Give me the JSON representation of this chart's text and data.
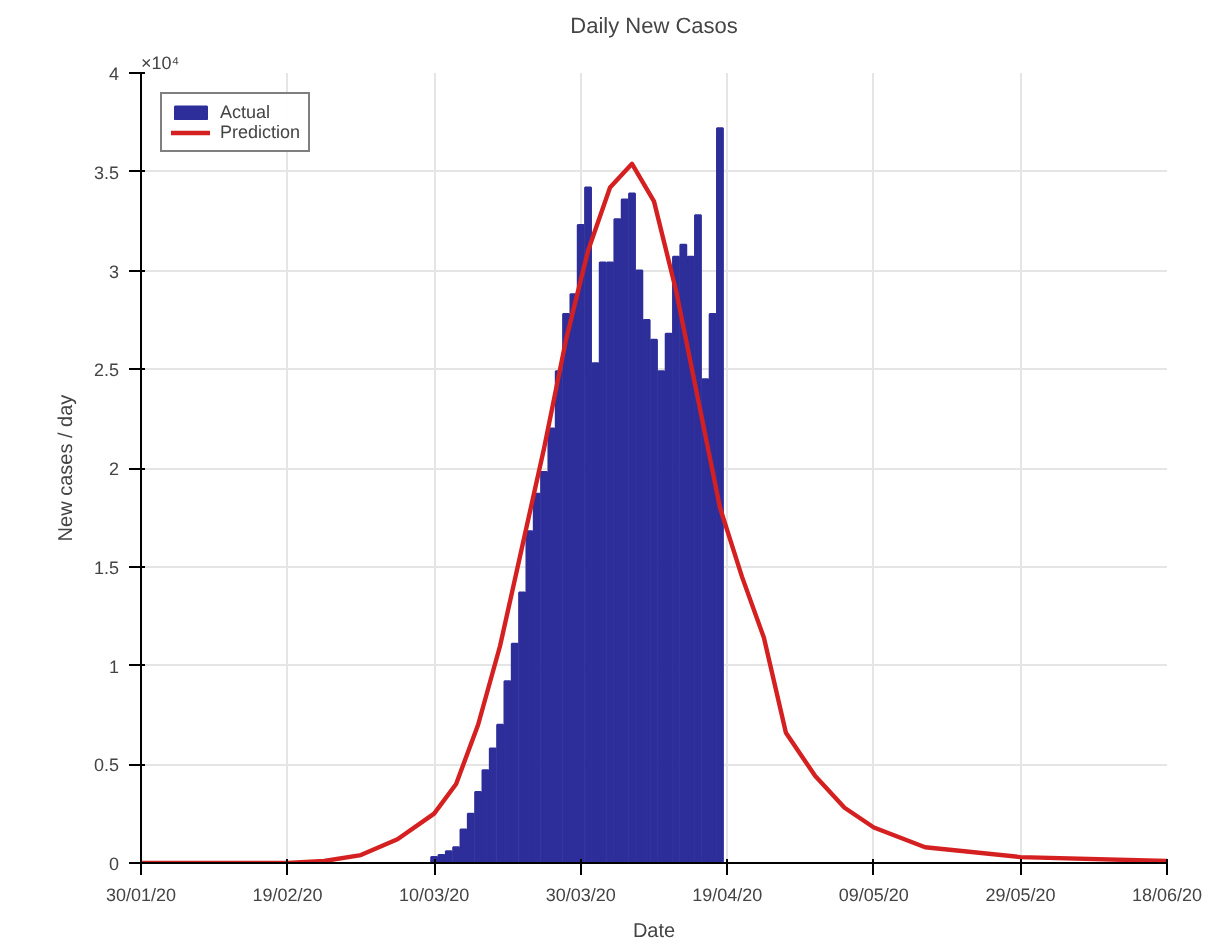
{
  "chart_data": {
    "type": "bar",
    "title": "Daily New Casos",
    "xlabel": "Date",
    "ylabel": "New cases / day",
    "annotations": [
      "×10⁴"
    ],
    "xlim": [
      "2020-01-30",
      "2020-06-18"
    ],
    "xticks": [
      {
        "value": "2020-01-30",
        "label": "30/01/20"
      },
      {
        "value": "2020-02-19",
        "label": "19/02/20"
      },
      {
        "value": "2020-03-10",
        "label": "10/03/20"
      },
      {
        "value": "2020-03-30",
        "label": "30/03/20"
      },
      {
        "value": "2020-04-19",
        "label": "19/04/20"
      },
      {
        "value": "2020-05-09",
        "label": "09/05/20"
      },
      {
        "value": "2020-05-29",
        "label": "29/05/20"
      },
      {
        "value": "2020-06-18",
        "label": "18/06/20"
      }
    ],
    "ylim": [
      0,
      4
    ],
    "yticks": [
      0,
      0.5,
      1,
      1.5,
      2,
      2.5,
      3,
      3.5,
      4
    ],
    "grid": true,
    "legend": "top left",
    "series": [
      {
        "name": "Actual",
        "color": "#2e2e9a",
        "x": [
          "2020-03-10",
          "2020-03-11",
          "2020-03-12",
          "2020-03-13",
          "2020-03-14",
          "2020-03-15",
          "2020-03-16",
          "2020-03-17",
          "2020-03-18",
          "2020-03-19",
          "2020-03-20",
          "2020-03-21",
          "2020-03-22",
          "2020-03-23",
          "2020-03-24",
          "2020-03-25",
          "2020-03-26",
          "2020-03-27",
          "2020-03-28",
          "2020-03-29",
          "2020-03-30",
          "2020-03-31",
          "2020-04-01",
          "2020-04-02",
          "2020-04-03",
          "2020-04-04",
          "2020-04-05",
          "2020-04-06",
          "2020-04-07",
          "2020-04-08",
          "2020-04-09",
          "2020-04-10",
          "2020-04-11",
          "2020-04-12",
          "2020-04-13",
          "2020-04-14",
          "2020-04-15",
          "2020-04-16",
          "2020-04-17",
          "2020-04-18"
        ],
        "values": [
          0.03,
          0.04,
          0.06,
          0.08,
          0.17,
          0.25,
          0.36,
          0.47,
          0.58,
          0.7,
          0.92,
          1.11,
          1.37,
          1.68,
          1.87,
          1.98,
          2.2,
          2.49,
          2.78,
          2.88,
          3.23,
          3.42,
          2.53,
          3.04,
          3.04,
          3.26,
          3.36,
          3.39,
          3.0,
          2.75,
          2.65,
          2.49,
          2.68,
          3.07,
          3.13,
          3.07,
          3.28,
          2.45,
          2.78,
          3.72
        ]
      },
      {
        "name": "Prediction",
        "type": "line",
        "color": "#d42020",
        "x": [
          "2020-01-30",
          "2020-02-09",
          "2020-02-19",
          "2020-02-24",
          "2020-02-29",
          "2020-03-05",
          "2020-03-10",
          "2020-03-13",
          "2020-03-16",
          "2020-03-19",
          "2020-03-22",
          "2020-03-25",
          "2020-03-28",
          "2020-03-31",
          "2020-04-03",
          "2020-04-06",
          "2020-04-09",
          "2020-04-12",
          "2020-04-15",
          "2020-04-18",
          "2020-04-21",
          "2020-04-24",
          "2020-04-27",
          "2020-05-01",
          "2020-05-05",
          "2020-05-09",
          "2020-05-16",
          "2020-05-29",
          "2020-06-18"
        ],
        "values": [
          0,
          0,
          0,
          0.01,
          0.04,
          0.12,
          0.25,
          0.4,
          0.7,
          1.1,
          1.6,
          2.1,
          2.65,
          3.1,
          3.42,
          3.54,
          3.35,
          2.9,
          2.35,
          1.8,
          1.45,
          1.14,
          0.66,
          0.44,
          0.28,
          0.18,
          0.08,
          0.03,
          0.01
        ]
      }
    ]
  }
}
